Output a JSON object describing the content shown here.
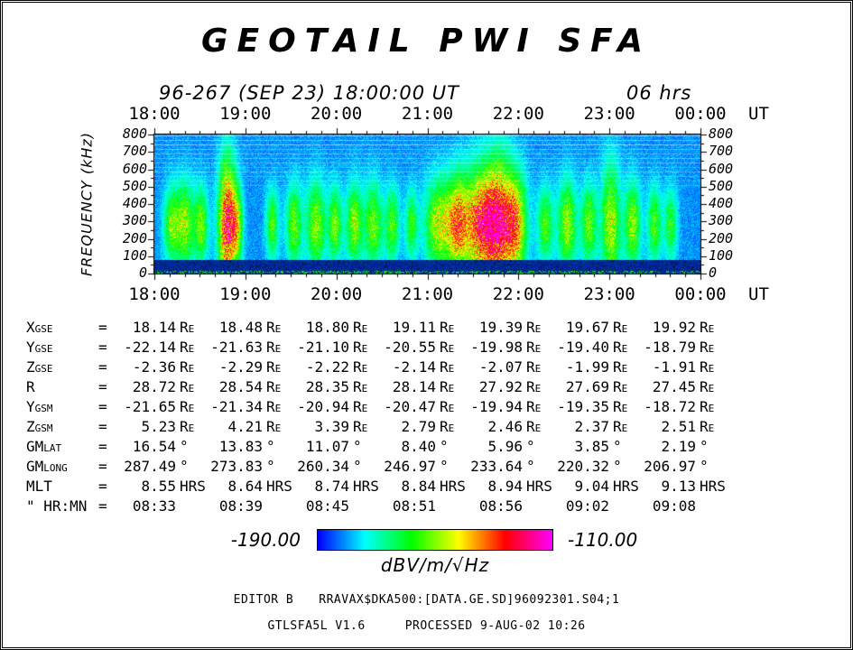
{
  "title": "GEOTAIL PWI SFA",
  "header": {
    "datetime": "96-267 (SEP 23) 18:00:00 UT",
    "duration": "06 hrs"
  },
  "axis": {
    "time_labels": [
      "18:00",
      "19:00",
      "20:00",
      "21:00",
      "22:00",
      "23:00",
      "00:00"
    ],
    "time_unit": "UT",
    "freq_label": "FREQUENCY (kHz)",
    "freq_ticks": [
      800,
      700,
      600,
      500,
      400,
      300,
      200,
      100,
      0
    ]
  },
  "ephemeris": {
    "rows": [
      {
        "label": "Xgse",
        "eq": "=",
        "unit": "Re",
        "values": [
          "18.14",
          "18.48",
          "18.80",
          "19.11",
          "19.39",
          "19.67",
          "19.92"
        ]
      },
      {
        "label": "Ygse",
        "eq": "=",
        "unit": "Re",
        "values": [
          "-22.14",
          "-21.63",
          "-21.10",
          "-20.55",
          "-19.98",
          "-19.40",
          "-18.79"
        ]
      },
      {
        "label": "Zgse",
        "eq": "=",
        "unit": "Re",
        "values": [
          "-2.36",
          "-2.29",
          "-2.22",
          "-2.14",
          "-2.07",
          "-1.99",
          "-1.91"
        ]
      },
      {
        "label": "R",
        "eq": "=",
        "unit": "Re",
        "values": [
          "28.72",
          "28.54",
          "28.35",
          "28.14",
          "27.92",
          "27.69",
          "27.45"
        ]
      },
      {
        "label": "Ygsm",
        "eq": "=",
        "unit": "Re",
        "values": [
          "-21.65",
          "-21.34",
          "-20.94",
          "-20.47",
          "-19.94",
          "-19.35",
          "-18.72"
        ]
      },
      {
        "label": "Zgsm",
        "eq": "=",
        "unit": "Re",
        "values": [
          "5.23",
          "4.21",
          "3.39",
          "2.79",
          "2.46",
          "2.37",
          "2.51"
        ]
      },
      {
        "label": "GMlat",
        "eq": "=",
        "unit": "°",
        "values": [
          "16.54",
          "13.83",
          "11.07",
          "8.40",
          "5.96",
          "3.85",
          "2.19"
        ]
      },
      {
        "label": "GMlong",
        "eq": "=",
        "unit": "°",
        "values": [
          "287.49",
          "273.83",
          "260.34",
          "246.97",
          "233.64",
          "220.32",
          "206.97"
        ]
      },
      {
        "label": "MLT",
        "eq": "=",
        "unit": "HRS",
        "values": [
          "8.55",
          "8.64",
          "8.74",
          "8.84",
          "8.94",
          "9.04",
          "9.13"
        ]
      },
      {
        "label": "\" HR:MN",
        "eq": "=",
        "unit": "",
        "values": [
          "08:33",
          "08:39",
          "08:45",
          "08:51",
          "08:56",
          "09:02",
          "09:08"
        ]
      }
    ]
  },
  "colorbar": {
    "min_label": "-190.00",
    "max_label": "-110.00",
    "units": "dBV/m/√Hz"
  },
  "footer": {
    "editor": "EDITOR B",
    "file": "RRAVAX$DKA500:[DATA.GE.SD]96092301.S04;1",
    "program": "GTLSFA5L V1.6",
    "processed": "PROCESSED  9-AUG-02  10:26"
  },
  "chart_data": {
    "type": "heatmap",
    "title": "GEOTAIL PWI SFA",
    "subtitle": "96-267 (SEP 23) 18:00:00 UT, 06 hrs",
    "x": {
      "label": "UT",
      "ticks": [
        "18:00",
        "19:00",
        "20:00",
        "21:00",
        "22:00",
        "23:00",
        "00:00"
      ],
      "span_hours": 6,
      "minor_tick_minutes": 10
    },
    "y": {
      "label": "FREQUENCY (kHz)",
      "min": 0,
      "max": 800,
      "tick_step": 100
    },
    "z": {
      "label": "dBV/m/√Hz",
      "min": -190,
      "max": -110,
      "colormap": "rainbow blue-cyan-green-yellow-red-magenta"
    },
    "legend_position": "bottom",
    "grid": false,
    "description": "Plasma-wave electric field spectrogram: blue/cyan speckled broadband background near -180 dB; intermittent green-yellow emission bursts mostly 100-450 kHz, brightest near 18:50 UT and 21:30-22:10 UT; solid dark-blue low-intensity band below ~75 kHz; light horizontal interference lines above ~500 kHz.",
    "synth": {
      "band_top_khz": 75,
      "env_center_khz": 280,
      "streaks": [
        [
          0.03,
          0.45,
          0.01,
          150
        ],
        [
          0.055,
          0.55,
          0.012,
          170
        ],
        [
          0.085,
          0.5,
          0.009,
          150
        ],
        [
          0.132,
          0.95,
          0.011,
          260
        ],
        [
          0.15,
          0.55,
          0.008,
          160
        ],
        [
          0.215,
          0.45,
          0.008,
          140
        ],
        [
          0.255,
          0.5,
          0.01,
          160
        ],
        [
          0.295,
          0.55,
          0.012,
          170
        ],
        [
          0.33,
          0.5,
          0.009,
          150
        ],
        [
          0.365,
          0.55,
          0.01,
          160
        ],
        [
          0.4,
          0.5,
          0.012,
          170
        ],
        [
          0.435,
          0.45,
          0.009,
          150
        ],
        [
          0.47,
          0.4,
          0.008,
          140
        ],
        [
          0.52,
          0.6,
          0.018,
          180
        ],
        [
          0.555,
          0.7,
          0.014,
          200
        ],
        [
          0.595,
          0.85,
          0.02,
          220
        ],
        [
          0.63,
          0.9,
          0.018,
          260
        ],
        [
          0.662,
          0.7,
          0.014,
          200
        ],
        [
          0.715,
          0.45,
          0.01,
          150
        ],
        [
          0.755,
          0.55,
          0.012,
          180
        ],
        [
          0.795,
          0.5,
          0.01,
          160
        ],
        [
          0.835,
          0.6,
          0.012,
          240
        ],
        [
          0.875,
          0.55,
          0.01,
          170
        ],
        [
          0.915,
          0.45,
          0.009,
          150
        ],
        [
          0.945,
          0.4,
          0.008,
          140
        ]
      ],
      "white_lines": [
        [
          793,
          0.5
        ],
        [
          768,
          0.4
        ],
        [
          742,
          0.5
        ],
        [
          716,
          0.35
        ],
        [
          690,
          0.3
        ],
        [
          664,
          0.35
        ],
        [
          638,
          0.3
        ],
        [
          612,
          0.25
        ],
        [
          586,
          0.3
        ],
        [
          560,
          0.25
        ],
        [
          534,
          0.2
        ],
        [
          508,
          0.2
        ]
      ]
    }
  }
}
